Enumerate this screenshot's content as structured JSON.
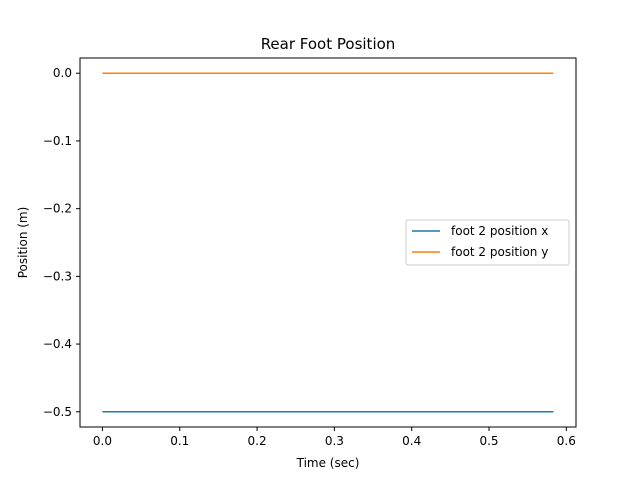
{
  "chart_data": {
    "type": "line",
    "title": "Rear Foot Position",
    "xlabel": "Time (sec)",
    "ylabel": "Position (m)",
    "xlim": [
      -0.029,
      0.6125
    ],
    "ylim": [
      -0.5225,
      0.0225
    ],
    "xticks": [
      0.0,
      0.1,
      0.2,
      0.3,
      0.4,
      0.5,
      0.6
    ],
    "xtick_labels": [
      "0.0",
      "0.1",
      "0.2",
      "0.3",
      "0.4",
      "0.5",
      "0.6"
    ],
    "yticks": [
      0.0,
      -0.1,
      -0.2,
      -0.3,
      -0.4,
      -0.5
    ],
    "ytick_labels": [
      "0.0",
      "−0.1",
      "−0.2",
      "−0.3",
      "−0.4",
      "−0.5"
    ],
    "grid": false,
    "legend_position": "center-right",
    "series": [
      {
        "name": "foot 2 position x",
        "color": "#1f77b4",
        "x": [
          0.0,
          0.5833
        ],
        "y": [
          -0.5,
          -0.5
        ]
      },
      {
        "name": "foot 2 position y",
        "color": "#ff7f0e",
        "x": [
          0.0,
          0.5833
        ],
        "y": [
          0.0,
          0.0
        ]
      }
    ]
  }
}
